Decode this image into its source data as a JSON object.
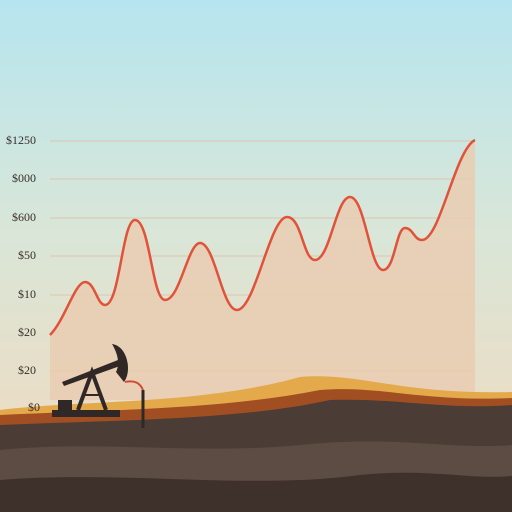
{
  "axis_labels": [
    "$1250",
    "$000",
    "$600",
    "$50",
    "$10",
    "$20",
    "$20",
    "$0"
  ]
}
